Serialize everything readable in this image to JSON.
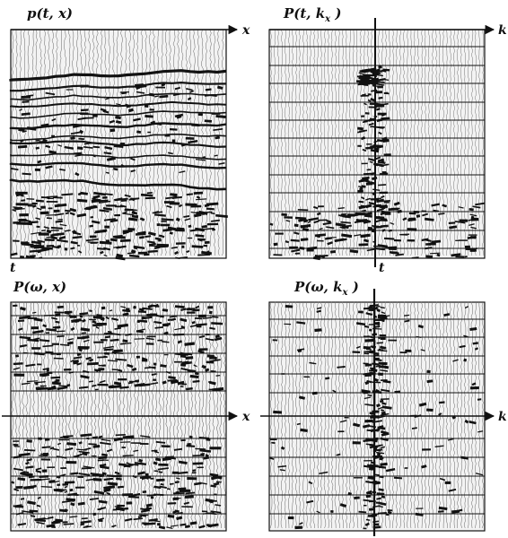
{
  "panels": [
    {
      "id": "p-t-x",
      "title": "p(t, x)",
      "axis_right": "x",
      "axis_bottom": "t",
      "axis_type": "top"
    },
    {
      "id": "P-t-kx",
      "title": "P(t, k",
      "title_sub": "x",
      "axis_right": "k",
      "axis_bottom": "t",
      "axis_type": "vertical-center"
    },
    {
      "id": "P-w-x",
      "title": "P(ω, x)",
      "axis_right": "x",
      "axis_type": "horizontal-center"
    },
    {
      "id": "P-w-kx",
      "title": "P(ω, k",
      "title_sub": "x",
      "axis_right": "k",
      "axis_type": "cross"
    }
  ],
  "colors": {
    "ink": "#111111",
    "paper": "#ffffff",
    "panel": "#f3f3f3"
  }
}
